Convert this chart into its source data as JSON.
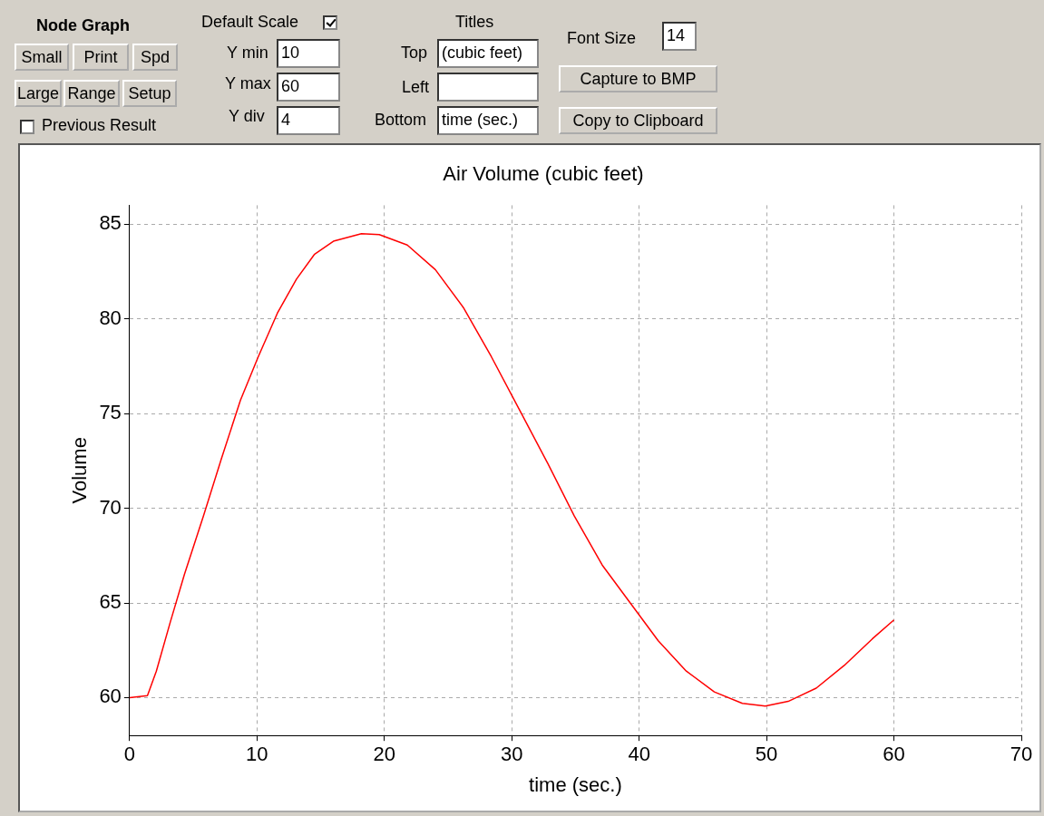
{
  "chart_data": {
    "type": "line",
    "title": "Air Volume (cubic feet)",
    "xlabel": "time (sec.)",
    "ylabel": "Volume",
    "x": [
      0,
      1.4,
      2.1,
      3.2,
      4.3,
      5.8,
      7.2,
      8.7,
      10.1,
      11.6,
      13.1,
      14.5,
      16,
      18.2,
      19.6,
      21.8,
      24,
      26.2,
      28.4,
      30.6,
      32.8,
      34.9,
      37.1,
      39.3,
      41.5,
      43.7,
      45.9,
      48.1,
      49.9,
      51.7,
      53.9,
      56.1,
      58.3,
      60
    ],
    "series": [
      {
        "color": "#ff0000",
        "values": [
          60,
          60.1,
          61.4,
          64,
          66.5,
          69.6,
          72.6,
          75.7,
          78,
          80.3,
          82.1,
          83.4,
          84.1,
          84.5,
          84.45,
          83.9,
          82.6,
          80.6,
          78,
          75.2,
          72.4,
          69.6,
          67,
          65,
          63,
          61.4,
          60.3,
          59.7,
          59.55,
          59.8,
          60.5,
          61.7,
          63.1,
          64.1
        ]
      }
    ],
    "xlim": [
      0,
      70
    ],
    "ylim": [
      58,
      86
    ],
    "xticks": [
      0,
      10,
      20,
      30,
      40,
      50,
      60,
      70
    ],
    "yticks": [
      60,
      65,
      70,
      75,
      80,
      85
    ],
    "grid": true,
    "marker": "none",
    "line_style": "solid",
    "annotations": [
      "Node Graph",
      "Small",
      "Print",
      "Spd",
      "Large",
      "Range",
      "Setup",
      "Previous Result",
      "Default Scale",
      "Y min",
      "10",
      "Y max",
      "60",
      "Y div",
      "4",
      "Titles",
      "Top",
      "(cubic feet)",
      "Left",
      "Bottom",
      "time (sec.)",
      "Font Size",
      "14",
      "Capture to BMP",
      "Copy to Clipboard"
    ]
  }
}
